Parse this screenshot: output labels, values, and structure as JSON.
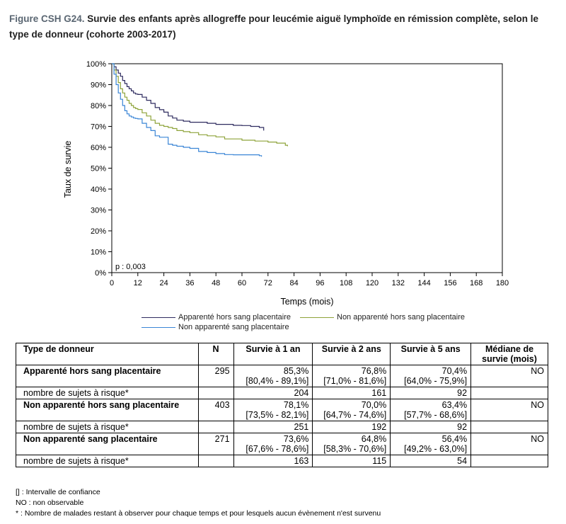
{
  "figure": {
    "label": "Figure CSH G24.",
    "title": "Survie des enfants après allogreffe pour leucémie aiguë lymphoïde en rémission complète, selon le type de donneur (cohorte 2003-2017)"
  },
  "chart_data": {
    "type": "line",
    "xlabel": "Temps (mois)",
    "ylabel": "Taux de survie",
    "xlim": [
      0,
      180
    ],
    "ylim": [
      0,
      100
    ],
    "x_ticks": [
      "0",
      "12",
      "24",
      "36",
      "48",
      "60",
      "72",
      "84",
      "96",
      "108",
      "120",
      "132",
      "144",
      "156",
      "168",
      "180"
    ],
    "y_ticks": [
      "0%",
      "10%",
      "20%",
      "30%",
      "40%",
      "50%",
      "60%",
      "70%",
      "80%",
      "90%",
      "100%"
    ],
    "annotation": "p : 0,003",
    "grid": false,
    "legend_position": "bottom",
    "series": [
      {
        "name": "Apparenté hors sang placentaire",
        "color": "#2e2b5f",
        "x": [
          0,
          1,
          2,
          3,
          4,
          5,
          6,
          7,
          8,
          9,
          10,
          11,
          12,
          14,
          16,
          18,
          20,
          22,
          24,
          26,
          28,
          30,
          33,
          36,
          40,
          44,
          48,
          52,
          56,
          60,
          64,
          68,
          70
        ],
        "y": [
          100,
          98.5,
          97,
          95.5,
          94,
          92,
          90.5,
          89,
          88,
          87,
          86,
          85.5,
          85.3,
          84,
          82.5,
          81,
          79,
          78,
          76.8,
          75,
          74,
          73,
          72.5,
          72,
          72,
          71.5,
          71,
          71,
          70.5,
          70.4,
          70,
          69.5,
          68
        ]
      },
      {
        "name": "Non apparenté hors sang placentaire",
        "color": "#8ea33a",
        "x": [
          0,
          1,
          2,
          3,
          4,
          5,
          6,
          7,
          8,
          9,
          10,
          11,
          12,
          14,
          16,
          18,
          20,
          22,
          24,
          26,
          28,
          30,
          33,
          36,
          40,
          44,
          48,
          52,
          56,
          60,
          66,
          72,
          76,
          80,
          81
        ],
        "y": [
          100,
          97,
          94,
          91,
          88,
          86,
          84,
          82.5,
          81,
          80,
          79,
          78.5,
          78.1,
          76.5,
          75,
          73,
          71.5,
          70.5,
          70,
          69.5,
          69,
          68,
          67.5,
          67,
          66,
          65.5,
          65,
          64,
          64,
          63.4,
          63,
          62.5,
          62,
          61,
          60.5
        ]
      },
      {
        "name": "Non apparenté sang placentaire",
        "color": "#3a85d6",
        "x": [
          0,
          1,
          2,
          3,
          4,
          5,
          6,
          7,
          8,
          9,
          10,
          11,
          12,
          14,
          16,
          18,
          20,
          22,
          24,
          26,
          28,
          30,
          33,
          36,
          40,
          44,
          48,
          52,
          56,
          60,
          64,
          68,
          69
        ],
        "y": [
          100,
          95,
          90,
          86,
          83,
          80,
          77.5,
          76,
          75,
          74.5,
          74,
          73.8,
          73.6,
          71.5,
          69.5,
          68,
          65.5,
          64.8,
          64.8,
          61.5,
          61,
          60.5,
          60,
          59.5,
          58,
          57.5,
          57,
          56.5,
          56.4,
          56.4,
          56.4,
          56,
          55.5
        ]
      }
    ]
  },
  "table": {
    "headers": [
      "Type de donneur",
      "N",
      "Survie à 1 an",
      "Survie à 2 ans",
      "Survie à 5 ans",
      "Médiane de survie (mois)"
    ],
    "groups": [
      {
        "name": "Apparenté hors sang placentaire",
        "n": "295",
        "s1": "85,3%",
        "ci1": "[80,4% - 89,1%]",
        "s2": "76,8%",
        "ci2": "[71,0% - 81,6%]",
        "s5": "70,4%",
        "ci5": "[64,0% - 75,9%]",
        "median": "NO",
        "risk_label": "nombre de sujets à risque*",
        "r1": "204",
        "r2": "161",
        "r5": "92"
      },
      {
        "name": "Non apparenté hors sang placentaire",
        "n": "403",
        "s1": "78,1%",
        "ci1": "[73,5% - 82,1%]",
        "s2": "70,0%",
        "ci2": "[64,7% - 74,6%]",
        "s5": "63,4%",
        "ci5": "[57,7% - 68,6%]",
        "median": "NO",
        "risk_label": "nombre de sujets à risque*",
        "r1": "251",
        "r2": "192",
        "r5": "92"
      },
      {
        "name": "Non apparenté sang placentaire",
        "n": "271",
        "s1": "73,6%",
        "ci1": "[67,6% - 78,6%]",
        "s2": "64,8%",
        "ci2": "[58,3% - 70,6%]",
        "s5": "56,4%",
        "ci5": "[49,2% - 63,0%]",
        "median": "NO",
        "risk_label": "nombre de sujets à risque*",
        "r1": "163",
        "r2": "115",
        "r5": "54"
      }
    ]
  },
  "notes": [
    "[] : Intervalle de confiance",
    "NO : non observable",
    "* : Nombre de malades restant à observer pour chaque temps et pour lesquels aucun évènement n'est survenu"
  ]
}
